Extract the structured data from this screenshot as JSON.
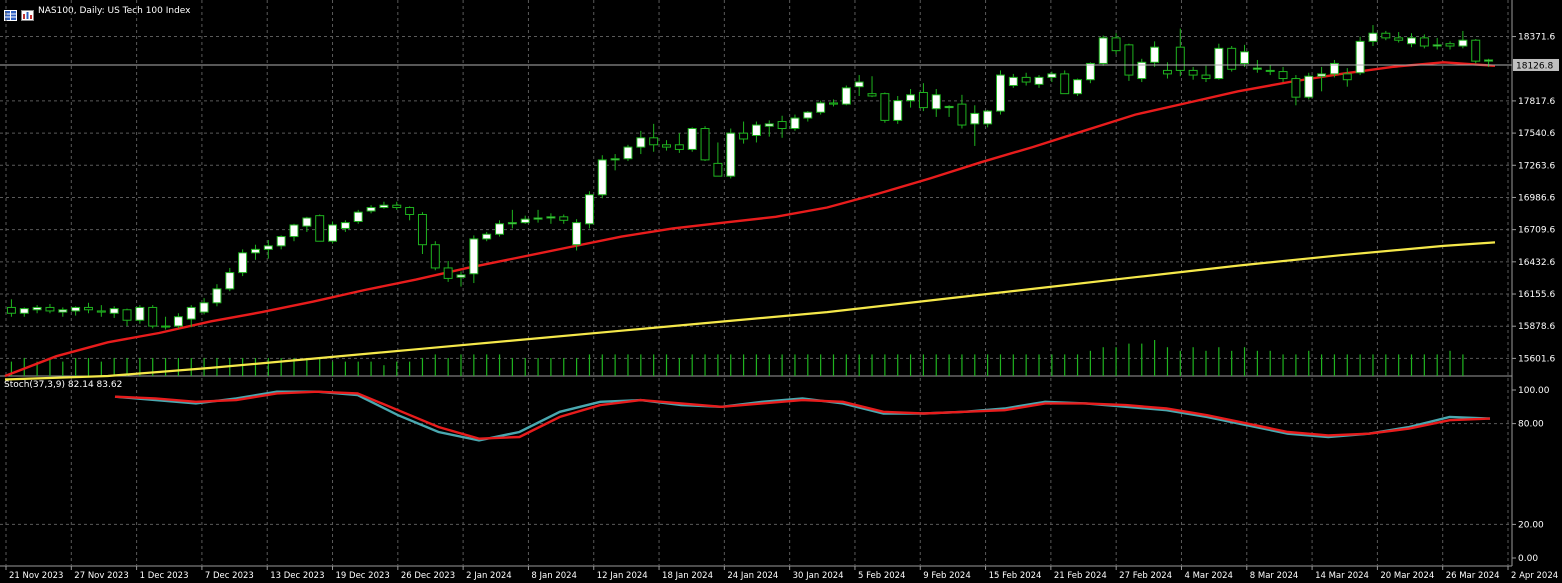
{
  "header": {
    "symbol_line": "NAS100, Daily:  US Tech 100 Index",
    "icons": [
      "table-icon",
      "chart-type-icon"
    ]
  },
  "colors": {
    "background": "#000000",
    "grid": "#5a5a5a",
    "bull_candle": "#ffffff",
    "bear_candle": "#000000",
    "candle_wick": "#1fb31f",
    "volume": "#1fb31f",
    "ma_fast": "#e81c1c",
    "ma_slow": "#f5e84a",
    "stoch_main": "#4aa8b0",
    "stoch_signal": "#e81c1c",
    "price_tag": "#c0c0c0"
  },
  "stochastic": {
    "label": "Stoch(37,3,9) 82.14 83.62",
    "levels": [
      "100.00",
      "80.00",
      "20.00",
      "0.00"
    ]
  },
  "chart_data": {
    "type": "candlestick",
    "title": "NAS100, Daily:  US Tech 100 Index",
    "grid": true,
    "ylim": [
      15450,
      18600
    ],
    "price_ticks": [
      "18371.6",
      "17817.6",
      "17540.6",
      "17263.6",
      "16986.6",
      "16709.6",
      "16432.6",
      "16155.6",
      "15878.6",
      "15601.6"
    ],
    "current_price": "18126.8",
    "x_ticks": [
      "21 Nov 2023",
      "27 Nov 2023",
      "1 Dec 2023",
      "7 Dec 2023",
      "13 Dec 2023",
      "19 Dec 2023",
      "26 Dec 2023",
      "2 Jan 2024",
      "8 Jan 2024",
      "12 Jan 2024",
      "18 Jan 2024",
      "24 Jan 2024",
      "30 Jan 2024",
      "5 Feb 2024",
      "9 Feb 2024",
      "15 Feb 2024",
      "21 Feb 2024",
      "27 Feb 2024",
      "4 Mar 2024",
      "8 Mar 2024",
      "14 Mar 2024",
      "20 Mar 2024",
      "26 Mar 2024",
      "2 Apr 2024"
    ],
    "candles": [
      [
        16040,
        16110,
        15960,
        15990
      ],
      [
        15990,
        16040,
        15960,
        16030
      ],
      [
        16020,
        16060,
        15990,
        16040
      ],
      [
        16040,
        16070,
        15990,
        16010
      ],
      [
        16000,
        16040,
        15960,
        16020
      ],
      [
        16010,
        16050,
        15970,
        16040
      ],
      [
        16040,
        16080,
        15990,
        16020
      ],
      [
        16010,
        16060,
        15960,
        16000
      ],
      [
        15990,
        16050,
        15950,
        16030
      ],
      [
        16020,
        16030,
        15880,
        15930
      ],
      [
        15930,
        16060,
        15900,
        16040
      ],
      [
        16040,
        16060,
        15860,
        15880
      ],
      [
        15880,
        15960,
        15850,
        15880
      ],
      [
        15880,
        15990,
        15860,
        15960
      ],
      [
        15940,
        16060,
        15870,
        16040
      ],
      [
        16000,
        16120,
        15980,
        16080
      ],
      [
        16080,
        16240,
        16050,
        16200
      ],
      [
        16200,
        16380,
        16180,
        16340
      ],
      [
        16340,
        16540,
        16310,
        16510
      ],
      [
        16510,
        16580,
        16450,
        16540
      ],
      [
        16540,
        16620,
        16460,
        16570
      ],
      [
        16570,
        16660,
        16540,
        16650
      ],
      [
        16650,
        16760,
        16610,
        16750
      ],
      [
        16740,
        16820,
        16690,
        16810
      ],
      [
        16830,
        16840,
        16630,
        16610
      ],
      [
        16610,
        16780,
        16590,
        16750
      ],
      [
        16720,
        16790,
        16690,
        16770
      ],
      [
        16780,
        16880,
        16760,
        16860
      ],
      [
        16870,
        16920,
        16850,
        16900
      ],
      [
        16900,
        16950,
        16890,
        16920
      ],
      [
        16920,
        16950,
        16880,
        16900
      ],
      [
        16900,
        16910,
        16790,
        16840
      ],
      [
        16840,
        16860,
        16500,
        16580
      ],
      [
        16580,
        16610,
        16360,
        16380
      ],
      [
        16380,
        16440,
        16260,
        16290
      ],
      [
        16300,
        16350,
        16220,
        16320
      ],
      [
        16330,
        16660,
        16250,
        16630
      ],
      [
        16630,
        16690,
        16610,
        16670
      ],
      [
        16670,
        16790,
        16650,
        16760
      ],
      [
        16760,
        16880,
        16720,
        16770
      ],
      [
        16770,
        16830,
        16760,
        16800
      ],
      [
        16800,
        16880,
        16770,
        16810
      ],
      [
        16810,
        16850,
        16760,
        16820
      ],
      [
        16820,
        16840,
        16760,
        16790
      ],
      [
        16580,
        16800,
        16530,
        16770
      ],
      [
        16760,
        17040,
        16720,
        17010
      ],
      [
        17010,
        17350,
        16980,
        17310
      ],
      [
        17310,
        17360,
        17220,
        17320
      ],
      [
        17320,
        17440,
        17300,
        17420
      ],
      [
        17420,
        17560,
        17360,
        17500
      ],
      [
        17500,
        17620,
        17380,
        17440
      ],
      [
        17440,
        17480,
        17390,
        17420
      ],
      [
        17440,
        17540,
        17370,
        17400
      ],
      [
        17400,
        17590,
        17380,
        17580
      ],
      [
        17580,
        17600,
        17300,
        17310
      ],
      [
        17280,
        17460,
        17200,
        17170
      ],
      [
        17170,
        17580,
        17150,
        17540
      ],
      [
        17540,
        17640,
        17450,
        17490
      ],
      [
        17520,
        17640,
        17460,
        17610
      ],
      [
        17600,
        17650,
        17510,
        17620
      ],
      [
        17640,
        17690,
        17500,
        17580
      ],
      [
        17580,
        17700,
        17560,
        17670
      ],
      [
        17670,
        17730,
        17640,
        17720
      ],
      [
        17720,
        17820,
        17700,
        17800
      ],
      [
        17800,
        17830,
        17770,
        17790
      ],
      [
        17790,
        17950,
        17780,
        17930
      ],
      [
        17940,
        18040,
        17860,
        17980
      ],
      [
        17880,
        18030,
        17850,
        17860
      ],
      [
        17880,
        17890,
        17630,
        17650
      ],
      [
        17650,
        17860,
        17620,
        17820
      ],
      [
        17820,
        17920,
        17760,
        17870
      ],
      [
        17890,
        17970,
        17730,
        17760
      ],
      [
        17750,
        17920,
        17680,
        17870
      ],
      [
        17760,
        17780,
        17680,
        17770
      ],
      [
        17790,
        17870,
        17580,
        17610
      ],
      [
        17620,
        17780,
        17430,
        17710
      ],
      [
        17620,
        17740,
        17590,
        17730
      ],
      [
        17730,
        18080,
        17700,
        18040
      ],
      [
        17950,
        18050,
        17930,
        18020
      ],
      [
        18020,
        18060,
        17950,
        17980
      ],
      [
        17960,
        18040,
        17930,
        18020
      ],
      [
        18020,
        18070,
        17980,
        18050
      ],
      [
        18050,
        18080,
        17880,
        17880
      ],
      [
        17880,
        18010,
        17860,
        18000
      ],
      [
        18000,
        18150,
        17970,
        18140
      ],
      [
        18140,
        18380,
        18120,
        18360
      ],
      [
        18360,
        18400,
        18220,
        18250
      ],
      [
        18300,
        18310,
        17990,
        18040
      ],
      [
        18010,
        18180,
        17980,
        18150
      ],
      [
        18150,
        18330,
        18110,
        18280
      ],
      [
        18080,
        18150,
        18010,
        18050
      ],
      [
        18280,
        18440,
        18030,
        18080
      ],
      [
        18080,
        18110,
        18000,
        18040
      ],
      [
        18040,
        18120,
        17980,
        18010
      ],
      [
        18010,
        18310,
        18000,
        18270
      ],
      [
        18270,
        18290,
        18070,
        18090
      ],
      [
        18140,
        18300,
        18110,
        18240
      ],
      [
        18090,
        18170,
        18060,
        18100
      ],
      [
        18080,
        18130,
        18040,
        18080
      ],
      [
        18070,
        18110,
        17980,
        18010
      ],
      [
        18010,
        18040,
        17780,
        17850
      ],
      [
        17850,
        18060,
        17830,
        18030
      ],
      [
        18030,
        18110,
        17900,
        18050
      ],
      [
        18050,
        18170,
        18020,
        18140
      ],
      [
        18050,
        18100,
        17940,
        18000
      ],
      [
        18060,
        18370,
        18040,
        18330
      ],
      [
        18330,
        18470,
        18290,
        18400
      ],
      [
        18400,
        18420,
        18340,
        18360
      ],
      [
        18360,
        18410,
        18320,
        18340
      ],
      [
        18310,
        18400,
        18280,
        18360
      ],
      [
        18360,
        18390,
        18270,
        18290
      ],
      [
        18290,
        18360,
        18260,
        18300
      ],
      [
        18310,
        18330,
        18260,
        18290
      ],
      [
        18290,
        18420,
        18270,
        18340
      ],
      [
        18340,
        18350,
        18140,
        18160
      ],
      [
        18160,
        18180,
        18110,
        18170
      ]
    ],
    "volume": [
      0.4,
      0.5,
      0.4,
      0.5,
      0.4,
      0.5,
      0.5,
      0.4,
      0.5,
      0.5,
      0.5,
      0.5,
      0.5,
      0.5,
      0.5,
      0.5,
      0.5,
      0.5,
      0.5,
      0.5,
      0.5,
      0.5,
      0.5,
      0.5,
      0.5,
      0.4,
      0.4,
      0.4,
      0.4,
      0.3,
      0.4,
      0.4,
      0.5,
      0.6,
      0.5,
      0.6,
      0.6,
      0.6,
      0.6,
      0.5,
      0.5,
      0.5,
      0.5,
      0.5,
      0.5,
      0.6,
      0.6,
      0.6,
      0.6,
      0.6,
      0.6,
      0.6,
      0.5,
      0.6,
      0.6,
      0.6,
      0.6,
      0.6,
      0.6,
      0.6,
      0.6,
      0.6,
      0.6,
      0.6,
      0.6,
      0.6,
      0.6,
      0.6,
      0.6,
      0.6,
      0.6,
      0.6,
      0.6,
      0.6,
      0.6,
      0.6,
      0.6,
      0.6,
      0.6,
      0.6,
      0.6,
      0.6,
      0.6,
      0.6,
      0.7,
      0.8,
      0.8,
      0.9,
      0.9,
      1.0,
      0.8,
      0.7,
      0.8,
      0.7,
      0.8,
      0.7,
      0.8,
      0.7,
      0.7,
      0.6,
      0.6,
      0.7,
      0.6,
      0.6,
      0.6,
      0.6,
      0.6,
      0.6,
      0.6,
      0.6,
      0.6,
      0.6,
      0.7,
      0.6
    ],
    "ma_fast": [
      [
        0,
        15450
      ],
      [
        5,
        15620
      ],
      [
        10,
        15740
      ],
      [
        15,
        15820
      ],
      [
        20,
        15920
      ],
      [
        25,
        16000
      ],
      [
        30,
        16090
      ],
      [
        35,
        16190
      ],
      [
        40,
        16280
      ],
      [
        45,
        16380
      ],
      [
        50,
        16470
      ],
      [
        55,
        16560
      ],
      [
        60,
        16650
      ],
      [
        65,
        16720
      ],
      [
        70,
        16770
      ],
      [
        75,
        16820
      ],
      [
        80,
        16900
      ],
      [
        85,
        17020
      ],
      [
        90,
        17150
      ],
      [
        95,
        17290
      ],
      [
        100,
        17420
      ],
      [
        105,
        17560
      ],
      [
        110,
        17700
      ],
      [
        115,
        17800
      ],
      [
        120,
        17900
      ],
      [
        125,
        17980
      ],
      [
        130,
        18050
      ],
      [
        135,
        18110
      ],
      [
        140,
        18150
      ],
      [
        145,
        18120
      ]
    ],
    "ma_slow": [
      [
        0,
        15420
      ],
      [
        10,
        15450
      ],
      [
        20,
        15520
      ],
      [
        30,
        15600
      ],
      [
        40,
        15680
      ],
      [
        50,
        15760
      ],
      [
        60,
        15840
      ],
      [
        70,
        15920
      ],
      [
        80,
        16000
      ],
      [
        90,
        16100
      ],
      [
        100,
        16200
      ],
      [
        110,
        16300
      ],
      [
        120,
        16400
      ],
      [
        130,
        16490
      ],
      [
        140,
        16570
      ],
      [
        145,
        16600
      ]
    ],
    "stoch_main": [
      [
        0,
        96
      ],
      [
        10,
        94
      ],
      [
        20,
        92
      ],
      [
        30,
        95
      ],
      [
        40,
        99
      ],
      [
        50,
        99
      ],
      [
        60,
        97
      ],
      [
        70,
        85
      ],
      [
        80,
        75
      ],
      [
        90,
        70
      ],
      [
        100,
        75
      ],
      [
        110,
        87
      ],
      [
        120,
        93
      ],
      [
        130,
        94
      ],
      [
        140,
        91
      ],
      [
        150,
        90
      ],
      [
        160,
        93
      ],
      [
        170,
        95
      ],
      [
        180,
        92
      ],
      [
        190,
        86
      ],
      [
        200,
        86
      ],
      [
        210,
        87
      ],
      [
        220,
        89
      ],
      [
        230,
        93
      ],
      [
        240,
        92
      ],
      [
        250,
        90
      ],
      [
        260,
        88
      ],
      [
        270,
        84
      ],
      [
        280,
        79
      ],
      [
        290,
        74
      ],
      [
        300,
        72
      ],
      [
        310,
        74
      ],
      [
        320,
        78
      ],
      [
        330,
        84
      ],
      [
        340,
        83
      ]
    ],
    "stoch_signal": [
      [
        0,
        96
      ],
      [
        10,
        95
      ],
      [
        20,
        93
      ],
      [
        30,
        94
      ],
      [
        40,
        98
      ],
      [
        50,
        99
      ],
      [
        60,
        98
      ],
      [
        70,
        88
      ],
      [
        80,
        78
      ],
      [
        90,
        71
      ],
      [
        100,
        72
      ],
      [
        110,
        84
      ],
      [
        120,
        91
      ],
      [
        130,
        94
      ],
      [
        140,
        92
      ],
      [
        150,
        90
      ],
      [
        160,
        92
      ],
      [
        170,
        94
      ],
      [
        180,
        93
      ],
      [
        190,
        87
      ],
      [
        200,
        86
      ],
      [
        210,
        87
      ],
      [
        220,
        88
      ],
      [
        230,
        92
      ],
      [
        240,
        92
      ],
      [
        250,
        91
      ],
      [
        260,
        89
      ],
      [
        270,
        85
      ],
      [
        280,
        80
      ],
      [
        290,
        75
      ],
      [
        300,
        73
      ],
      [
        310,
        74
      ],
      [
        320,
        77
      ],
      [
        330,
        82
      ],
      [
        340,
        83
      ]
    ]
  }
}
